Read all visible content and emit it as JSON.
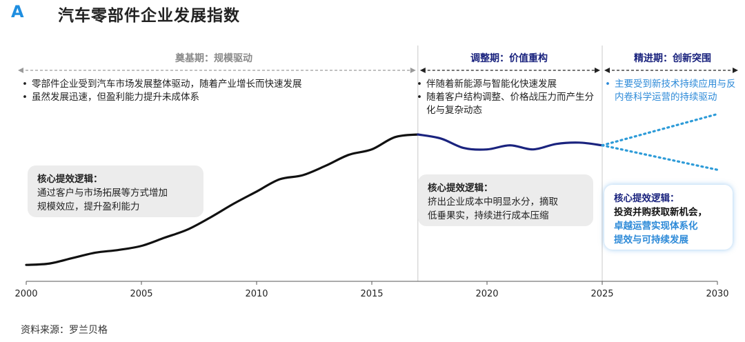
{
  "header": {
    "panel_letter": "A",
    "title": "汽车零部件企业发展指数"
  },
  "phases": [
    {
      "label": "奠基期：规模驱动",
      "color": "#8a8a8a"
    },
    {
      "label": "调整期：价值重构",
      "color": "#1a237e"
    },
    {
      "label": "精进期：创新突围",
      "color": "#1a237e"
    }
  ],
  "phase1": {
    "bullets": [
      "零部件企业受到汽车市场发展整体驱动，随着产业增长而快速发展",
      "虽然发展迅速，但盈利能力提升未成体系"
    ],
    "callout": {
      "title": "核心提效逻辑：",
      "line1": "通过客户与市场拓展等方式增加",
      "line2": "规模效应，提升盈利能力"
    }
  },
  "phase2": {
    "bullets": [
      "伴随着新能源与智能化快速发展",
      "随着客户结构调整、价格战压力而产生分化与复杂动态"
    ],
    "callout": {
      "title": "核心提效逻辑：",
      "line1": "挤出企业成本中明显水分，摘取",
      "line2": "低垂果实，持续进行成本压缩"
    }
  },
  "phase3": {
    "bullets": [
      "主要受到新技术持续应用与反内卷科学运营的持续驱动"
    ],
    "callout": {
      "title": "核心提效逻辑：",
      "strong": "投资并购获取新机会，",
      "accent1": "卓越运营实现体系化",
      "accent2": "提效与可持续发展"
    }
  },
  "source": "资料来源：罗兰贝格",
  "chart_data": {
    "type": "line",
    "title": "汽车零部件企业发展指数",
    "xlabel": "",
    "ylabel": "",
    "xlim": [
      2000,
      2030
    ],
    "ylim": [
      0,
      100
    ],
    "x_ticks": [
      2000,
      2005,
      2010,
      2015,
      2020,
      2025,
      2030
    ],
    "phase_boundaries": [
      2017,
      2025
    ],
    "series": [
      {
        "name": "historical",
        "color": "#111111",
        "x": [
          2000,
          2001,
          2002,
          2003,
          2004,
          2005,
          2006,
          2007,
          2008,
          2009,
          2010,
          2011,
          2012,
          2013,
          2014,
          2015,
          2016,
          2017
        ],
        "values": [
          7,
          8,
          12,
          16,
          18,
          21,
          27,
          33,
          42,
          52,
          61,
          70,
          73,
          80,
          88,
          92,
          101,
          103
        ]
      },
      {
        "name": "adjustment",
        "color": "#1a237e",
        "x": [
          2017,
          2018,
          2019,
          2020,
          2021,
          2022,
          2023,
          2024,
          2025
        ],
        "values": [
          103,
          100,
          93,
          92,
          95,
          92,
          96,
          97,
          95
        ]
      },
      {
        "name": "projection_upper",
        "color": "#2d9bd8",
        "dashed": true,
        "x": [
          2025,
          2030
        ],
        "values": [
          95,
          118
        ]
      },
      {
        "name": "projection_lower",
        "color": "#2d9bd8",
        "dashed": true,
        "x": [
          2025,
          2030
        ],
        "values": [
          95,
          77
        ]
      }
    ]
  }
}
